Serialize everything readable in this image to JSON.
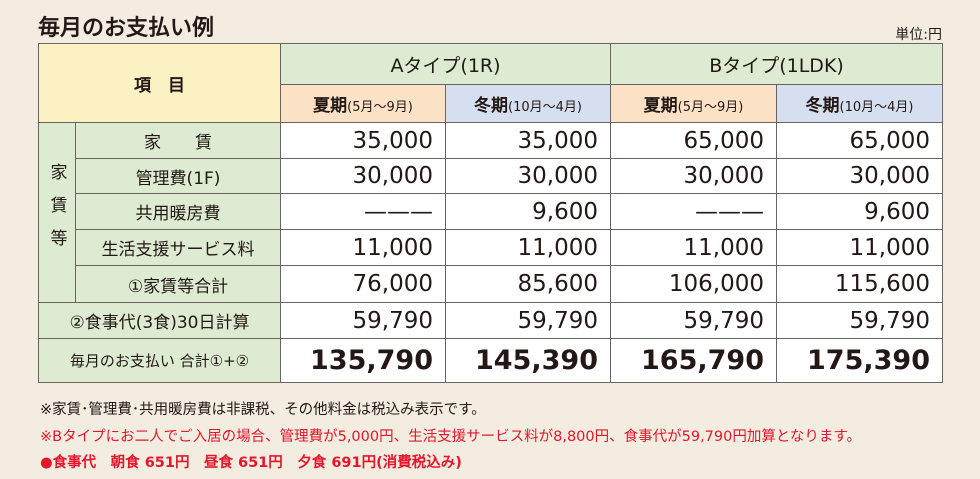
{
  "header": {
    "title": "毎月のお支払い例",
    "unit": "単位:円"
  },
  "table": {
    "corner": "項　目",
    "types": [
      "Aタイプ(1R)",
      "Bタイプ(1LDK)"
    ],
    "seasons": [
      {
        "name": "夏期",
        "months": "(5月～9月)"
      },
      {
        "name": "冬期",
        "months": "(10月～4月)"
      },
      {
        "name": "夏期",
        "months": "(5月～9月)"
      },
      {
        "name": "冬期",
        "months": "(10月～4月)"
      }
    ],
    "group": "家賃等",
    "rows": [
      {
        "label": "家　　賃",
        "values": [
          "35,000",
          "35,000",
          "65,000",
          "65,000"
        ]
      },
      {
        "label": "管理費(1F)",
        "values": [
          "30,000",
          "30,000",
          "30,000",
          "30,000"
        ]
      },
      {
        "label": "共用暖房費",
        "values": [
          "———",
          "9,600",
          "———",
          "9,600"
        ]
      },
      {
        "label": "生活支援サービス料",
        "values": [
          "11,000",
          "11,000",
          "11,000",
          "11,000"
        ]
      },
      {
        "label": "①家賃等合計",
        "values": [
          "76,000",
          "85,600",
          "106,000",
          "115,600"
        ]
      }
    ],
    "meal": {
      "label": "②食事代(3食)30日計算",
      "values": [
        "59,790",
        "59,790",
        "59,790",
        "59,790"
      ]
    },
    "total": {
      "label": "毎月のお支払い 合計①+②",
      "values": [
        "135,790",
        "145,390",
        "165,790",
        "175,390"
      ]
    }
  },
  "notes": [
    "※家賃･管理費･共用暖房費は非課税、その他料金は税込み表示です。",
    "※Bタイプにお二人でご入居の場合、管理費が5,000円、生活支援サービス料が8,800円、食事代が59,790円加算となります。",
    "●食事代　朝食 651円　昼食 651円　夕食 691円(消費税込み)"
  ]
}
